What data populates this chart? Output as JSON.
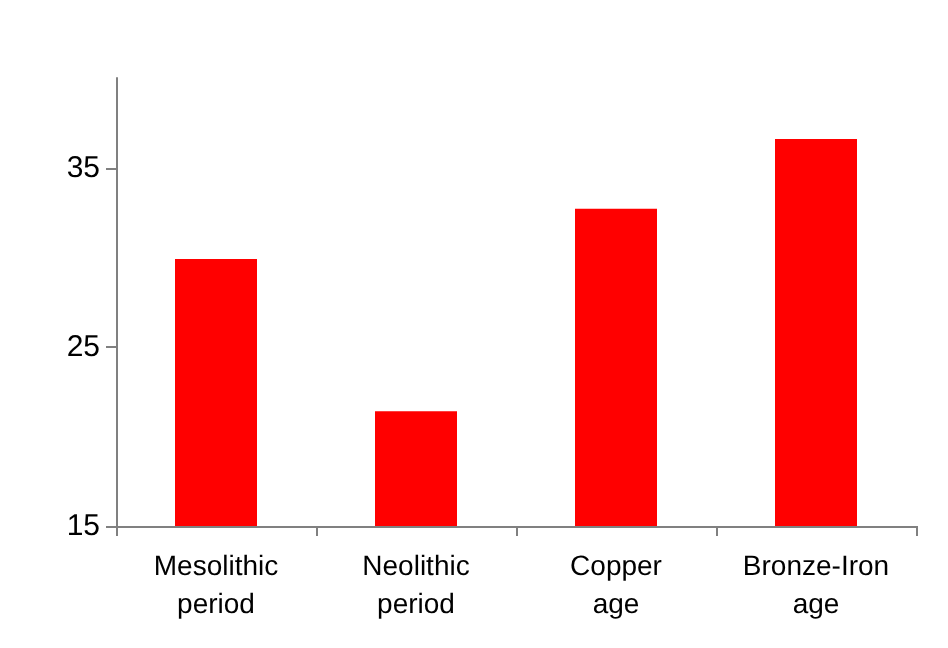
{
  "chart_data": {
    "type": "bar",
    "categories": [
      "Mesolithic\nperiod",
      "Neolithic\nperiod",
      "Copper\nage",
      "Bronze-Iron\nage"
    ],
    "values": [
      29.9,
      21.4,
      32.7,
      36.6
    ],
    "color": "#ff0000",
    "ylim": [
      15,
      40
    ],
    "yticks": [
      15,
      25,
      35
    ],
    "grid": false
  }
}
